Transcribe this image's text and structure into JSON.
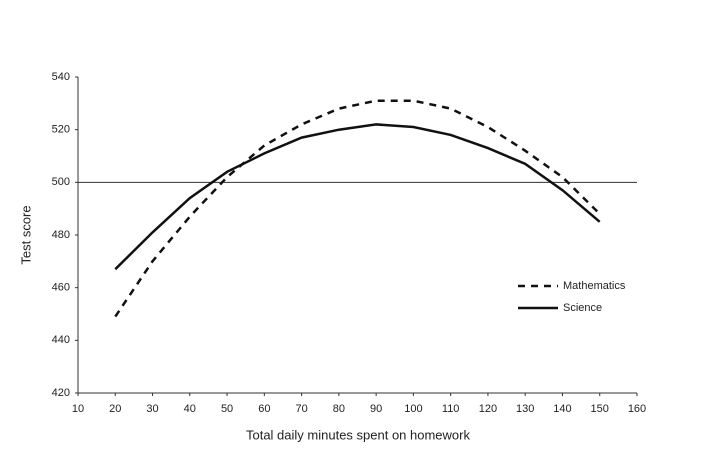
{
  "chart_data": {
    "type": "line",
    "x_label": "Total daily minutes spent on homework",
    "y_label": "Test score",
    "x": [
      20,
      30,
      40,
      50,
      60,
      70,
      80,
      90,
      100,
      110,
      120,
      130,
      140,
      150
    ],
    "series": [
      {
        "name": "Mathematics",
        "color": "#111111",
        "dash": "dashed",
        "values": [
          449,
          470,
          487,
          502,
          514,
          522,
          528,
          531,
          531,
          528,
          521,
          512,
          502,
          488
        ]
      },
      {
        "name": "Science",
        "color": "#111111",
        "dash": "solid",
        "values": [
          467,
          481,
          494,
          504,
          511,
          517,
          520,
          522,
          521,
          518,
          513,
          507,
          497,
          485
        ]
      }
    ],
    "xlim": [
      10,
      160
    ],
    "xticks": [
      10,
      20,
      30,
      40,
      50,
      60,
      70,
      80,
      90,
      100,
      110,
      120,
      130,
      140,
      150,
      160
    ],
    "ylim": [
      420,
      540
    ],
    "yticks": [
      420,
      440,
      460,
      480,
      500,
      520,
      540
    ],
    "reference_line": 500,
    "legend": "right"
  }
}
